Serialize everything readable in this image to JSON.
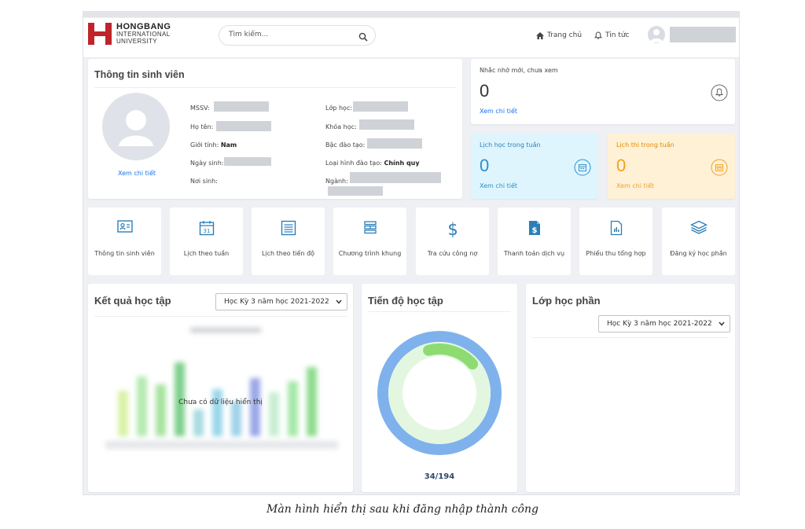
{
  "header": {
    "logo_line1": "HONGBANG",
    "logo_line2": "INTERNATIONAL",
    "logo_line3": "UNIVERSITY",
    "search_placeholder": "Tìm kiếm...",
    "nav_home": "Trang chủ",
    "nav_news": "Tin tức"
  },
  "student_info": {
    "title": "Thông tin sinh viên",
    "view_detail": "Xem chi tiết",
    "mssv_label": "MSSV:",
    "name_label": "Họ tên:",
    "gender_label": "Giới tính:",
    "gender_value": "Nam",
    "dob_label": "Ngày sinh:",
    "birthplace_label": "Nơi sinh:",
    "class_label": "Lớp học:",
    "course_label": "Khóa học:",
    "level_label": "Bậc đào tạo:",
    "type_label": "Loại hình đào tạo:",
    "type_value": "Chính quy",
    "major_label": "Ngành:"
  },
  "reminders": {
    "title": "Nhắc nhở mới, chưa xem",
    "count": "0",
    "link": "Xem chi tiết"
  },
  "weekly_schedule": {
    "title": "Lịch học trong tuần",
    "count": "0",
    "link": "Xem chi tiết",
    "color": "#dff5fd"
  },
  "exam_schedule": {
    "title": "Lịch thi trong tuần",
    "count": "0",
    "link": "Xem chi tiết",
    "color": "#fff1d6"
  },
  "tiles": [
    {
      "label": "Thông tin sinh viên",
      "icon": "id-card-icon"
    },
    {
      "label": "Lịch theo tuần",
      "icon": "calendar-31-icon",
      "icon_text": "31"
    },
    {
      "label": "Lịch theo tiến độ",
      "icon": "list-document-icon"
    },
    {
      "label": "Chương trình khung",
      "icon": "stacked-blocks-icon"
    },
    {
      "label": "Tra cứu công nợ",
      "icon": "dollar-icon",
      "icon_text": "$"
    },
    {
      "label": "Thanh toán dịch vụ",
      "icon": "dollar-document-icon",
      "icon_text": "$"
    },
    {
      "label": "Phiếu thu tổng hợp",
      "icon": "chart-document-icon"
    },
    {
      "label": "Đăng ký học phần",
      "icon": "layers-icon"
    }
  ],
  "results": {
    "title": "Kết quả học tập",
    "select_value": "Học Kỳ 3 năm học 2021-2022",
    "empty_text": "Chưa có dữ liệu hiển thị"
  },
  "progress": {
    "title": "Tiến độ học tập",
    "completed": 34,
    "total": 194,
    "label": "34/194"
  },
  "course_sections": {
    "title": "Lớp học phần",
    "select_value": "Học Kỳ 3 năm học 2021-2022"
  },
  "caption": "Màn hình hiển thị sau khi đăng nhập thành công"
}
